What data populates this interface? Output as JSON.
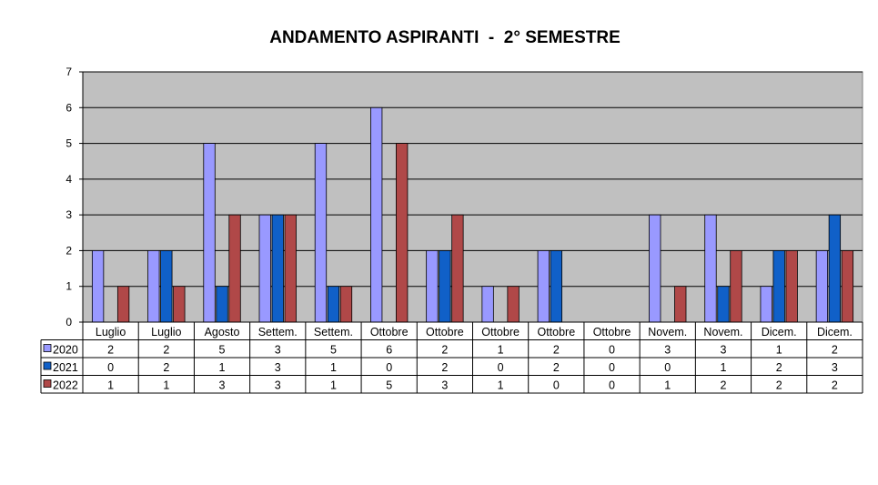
{
  "chart_data": {
    "type": "bar",
    "title": "ANDAMENTO ASPIRANTI  -  2° SEMESTRE",
    "categories": [
      "Luglio",
      "Luglio",
      "Agosto",
      "Settem.",
      "Settem.",
      "Ottobre",
      "Ottobre",
      "Ottobre",
      "Ottobre",
      "Ottobre",
      "Novem.",
      "Novem.",
      "Dicem.",
      "Dicem."
    ],
    "series": [
      {
        "name": "2020",
        "color": "#9999ff",
        "values": [
          2,
          2,
          5,
          3,
          5,
          6,
          2,
          1,
          2,
          0,
          3,
          3,
          1,
          2
        ]
      },
      {
        "name": "2021",
        "color": "#1060c8",
        "values": [
          0,
          2,
          1,
          3,
          1,
          0,
          2,
          0,
          2,
          0,
          0,
          1,
          2,
          3
        ]
      },
      {
        "name": "2022",
        "color": "#b04848",
        "values": [
          1,
          1,
          3,
          3,
          1,
          5,
          3,
          1,
          0,
          0,
          1,
          2,
          2,
          2
        ]
      }
    ],
    "ylim": [
      0,
      7
    ],
    "yticks": [
      "0",
      "1",
      "2",
      "3",
      "4",
      "5",
      "6",
      "7"
    ],
    "grid": true,
    "legend": "data-table",
    "plot_background": "#c0c0c0"
  }
}
